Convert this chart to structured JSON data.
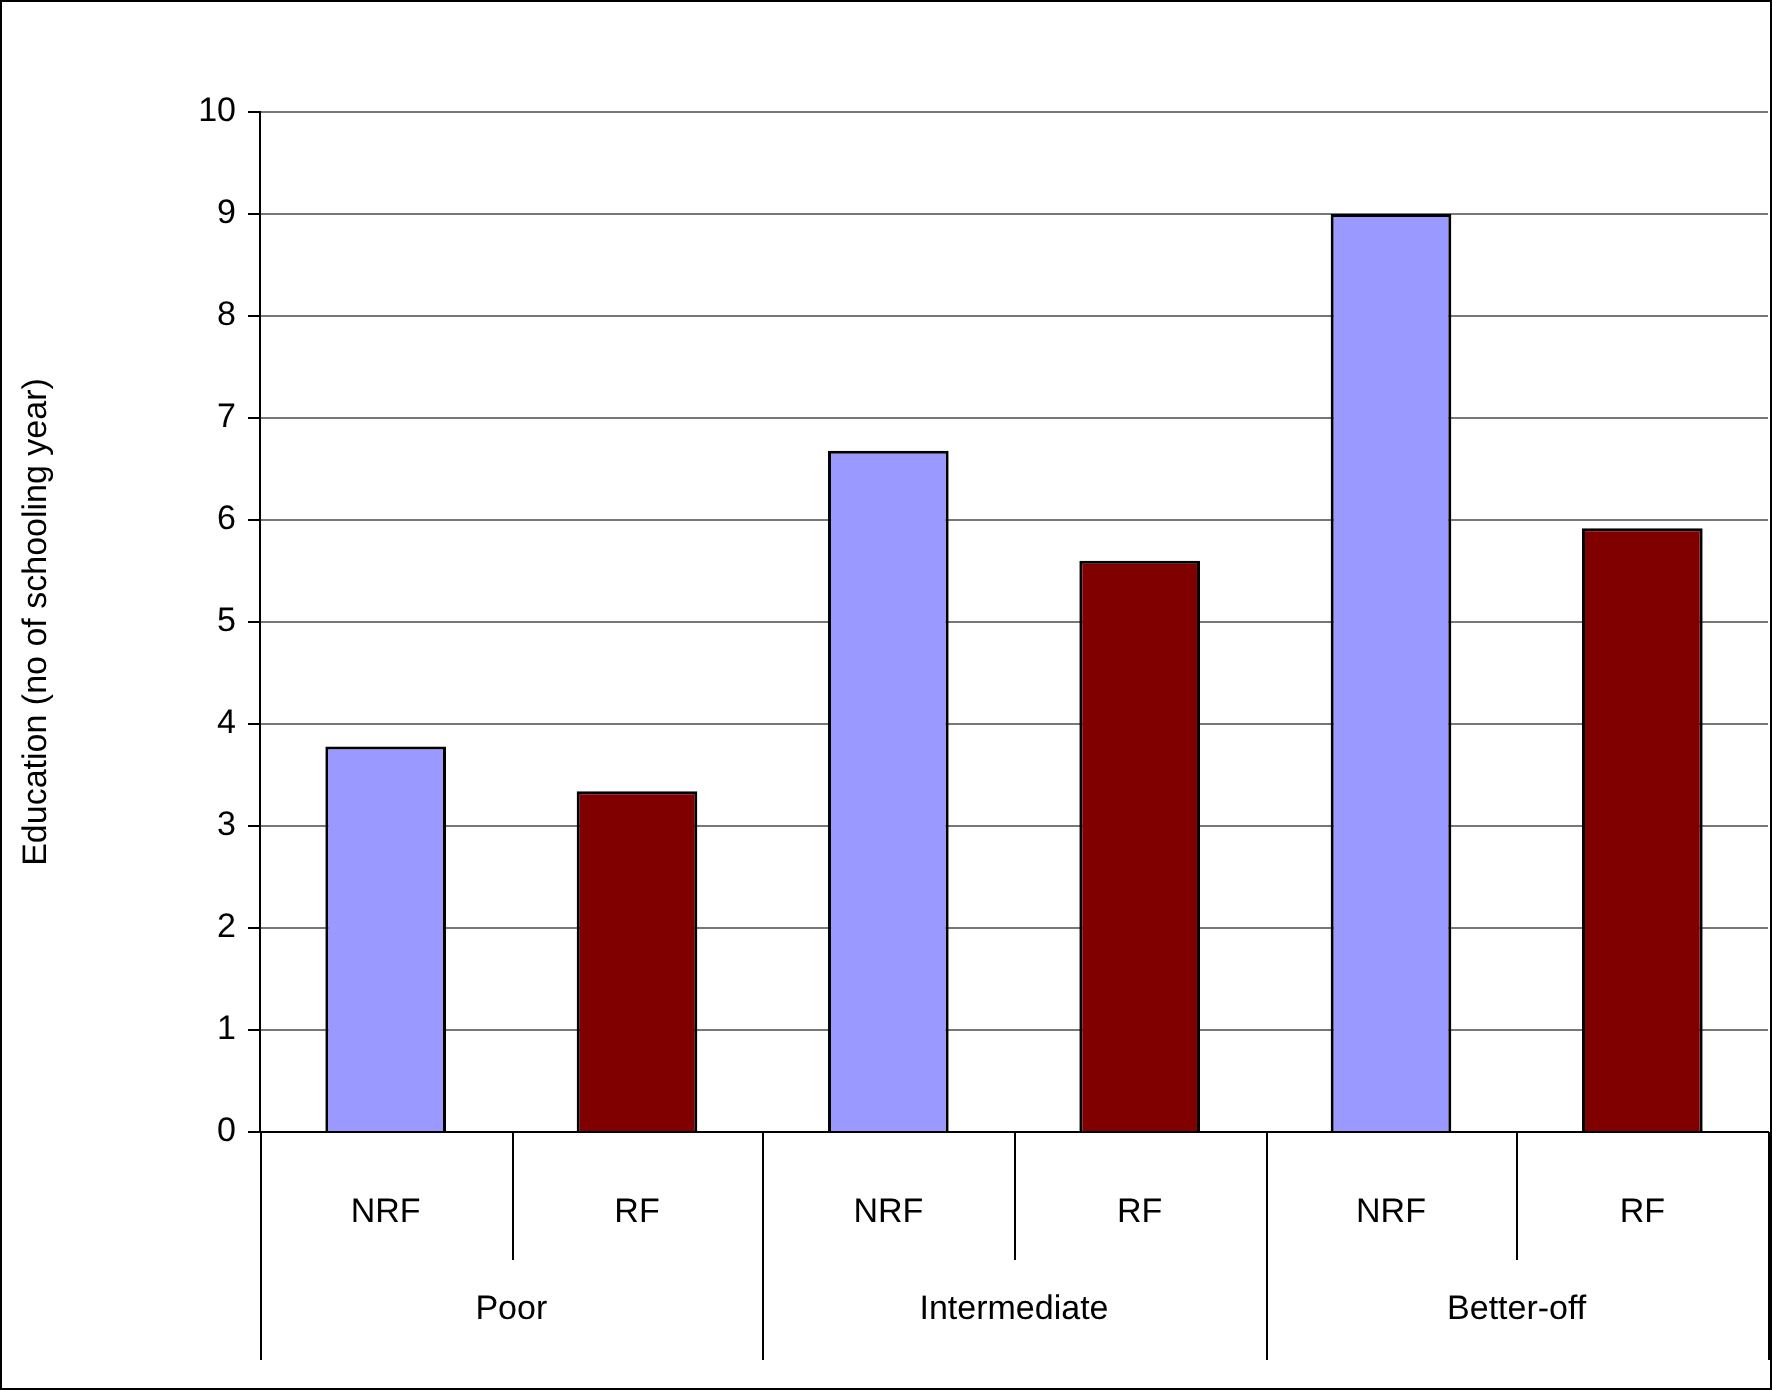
{
  "chart_data": {
    "type": "bar",
    "ylabel": "Education (no of schooling year)",
    "categories": [
      "NRF",
      "RF",
      "NRF",
      "RF",
      "NRF",
      "RF"
    ],
    "values": [
      3.78,
      3.34,
      6.68,
      5.6,
      9.0,
      5.92
    ],
    "colors": [
      "#9999ff",
      "#800000",
      "#9999ff",
      "#800000",
      "#9999ff",
      "#800000"
    ],
    "annotations": [
      "Poor",
      "Intermediate",
      "Better-off"
    ],
    "ylim": [
      0,
      10
    ],
    "yticks": [
      0,
      1,
      2,
      3,
      4,
      5,
      6,
      7,
      8,
      9,
      10
    ],
    "grid": "y",
    "legend": false
  }
}
